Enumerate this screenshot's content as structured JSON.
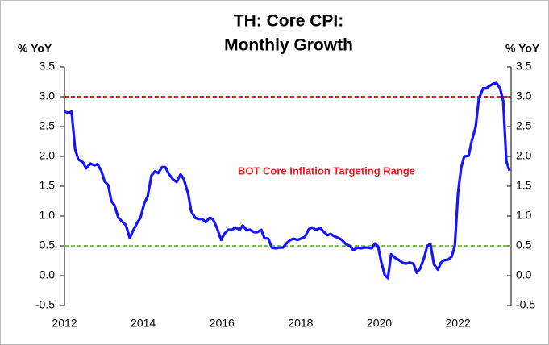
{
  "chart_data": {
    "type": "line",
    "title": [
      "TH: Core CPI:",
      "Monthly Growth"
    ],
    "ylabel": "% YoY",
    "y2label": "% YoY",
    "annotation": "BOT Core Inflation Targeting Range",
    "xlim": [
      2012,
      2023.35
    ],
    "xticks": [
      2012,
      2014,
      2016,
      2018,
      2020,
      2022
    ],
    "ylim": [
      -0.5,
      3.5
    ],
    "yticks": [
      -0.5,
      {
        "value": 0,
        "label": "0.0"
      },
      0.5,
      {
        "value": 1,
        "label": "1.0"
      },
      1.5,
      {
        "value": 2,
        "label": "2.0"
      },
      2.5,
      {
        "value": 3,
        "label": "3.0"
      },
      3.5
    ],
    "y2lim": [
      -0.5,
      3.5
    ],
    "y2ticks": [
      -0.5,
      {
        "value": 0,
        "label": "0.0"
      },
      0.5,
      {
        "value": 1,
        "label": "1.0"
      },
      1.5,
      {
        "value": 2,
        "label": "2.0"
      },
      2.5,
      {
        "value": 3,
        "label": "3.0"
      },
      3.5
    ],
    "reference_lines": [
      {
        "value": 3.0,
        "color": "#e8181d"
      },
      {
        "value": 0.5,
        "color": "#7cc242"
      }
    ],
    "x": [
      2012.0,
      2012.1,
      2012.18,
      2012.27,
      2012.35,
      2012.47,
      2012.55,
      2012.66,
      2012.76,
      2012.84,
      2012.94,
      2013.02,
      2013.11,
      2013.19,
      2013.27,
      2013.37,
      2013.48,
      2013.56,
      2013.66,
      2013.74,
      2013.84,
      2013.93,
      2014.03,
      2014.11,
      2014.21,
      2014.3,
      2014.38,
      2014.48,
      2014.56,
      2014.66,
      2014.75,
      2014.85,
      2014.95,
      2015.03,
      2015.14,
      2015.22,
      2015.32,
      2015.4,
      2015.5,
      2015.59,
      2015.69,
      2015.77,
      2015.87,
      2015.98,
      2016.06,
      2016.16,
      2016.26,
      2016.34,
      2016.45,
      2016.53,
      2016.63,
      2016.71,
      2016.82,
      2016.9,
      2017.0,
      2017.08,
      2017.18,
      2017.27,
      2017.37,
      2017.45,
      2017.55,
      2017.64,
      2017.74,
      2017.82,
      2017.92,
      2018.0,
      2018.11,
      2018.21,
      2018.29,
      2018.39,
      2018.5,
      2018.58,
      2018.68,
      2018.76,
      2018.86,
      2018.97,
      2019.05,
      2019.15,
      2019.25,
      2019.34,
      2019.44,
      2019.52,
      2019.62,
      2019.7,
      2019.81,
      2019.89,
      2019.97,
      2020.05,
      2020.14,
      2020.22,
      2020.3,
      2020.4,
      2020.48,
      2020.59,
      2020.67,
      2020.77,
      2020.87,
      2020.95,
      2021.04,
      2021.14,
      2021.22,
      2021.3,
      2021.39,
      2021.49,
      2021.57,
      2021.65,
      2021.75,
      2021.84,
      2021.92,
      2022.0,
      2022.08,
      2022.16,
      2022.27,
      2022.35,
      2022.45,
      2022.53,
      2022.64,
      2022.72,
      2022.8,
      2022.9,
      2022.98,
      2023.07,
      2023.15,
      2023.23,
      2023.31
    ],
    "series": [
      {
        "color": "#1414ff",
        "values": [
          2.75,
          2.73,
          2.75,
          2.12,
          1.95,
          1.9,
          1.8,
          1.88,
          1.85,
          1.87,
          1.75,
          1.58,
          1.52,
          1.25,
          1.18,
          0.97,
          0.9,
          0.85,
          0.63,
          0.75,
          0.88,
          0.97,
          1.22,
          1.32,
          1.68,
          1.75,
          1.72,
          1.82,
          1.82,
          1.7,
          1.62,
          1.57,
          1.7,
          1.62,
          1.38,
          1.08,
          0.97,
          0.95,
          0.95,
          0.9,
          0.97,
          0.95,
          0.81,
          0.6,
          0.7,
          0.77,
          0.77,
          0.81,
          0.77,
          0.84,
          0.76,
          0.77,
          0.73,
          0.73,
          0.77,
          0.63,
          0.62,
          0.47,
          0.46,
          0.47,
          0.47,
          0.54,
          0.6,
          0.62,
          0.6,
          0.62,
          0.65,
          0.78,
          0.81,
          0.77,
          0.8,
          0.74,
          0.68,
          0.7,
          0.66,
          0.63,
          0.6,
          0.53,
          0.5,
          0.43,
          0.47,
          0.46,
          0.47,
          0.47,
          0.46,
          0.54,
          0.49,
          0.23,
          0.01,
          -0.04,
          0.36,
          0.3,
          0.27,
          0.22,
          0.2,
          0.22,
          0.2,
          0.05,
          0.12,
          0.3,
          0.5,
          0.53,
          0.19,
          0.1,
          0.22,
          0.26,
          0.27,
          0.32,
          0.5,
          1.38,
          1.81,
          2.0,
          2.01,
          2.26,
          2.5,
          2.97,
          3.14,
          3.14,
          3.18,
          3.22,
          3.23,
          3.14,
          2.93,
          1.92,
          1.76
        ]
      }
    ]
  }
}
